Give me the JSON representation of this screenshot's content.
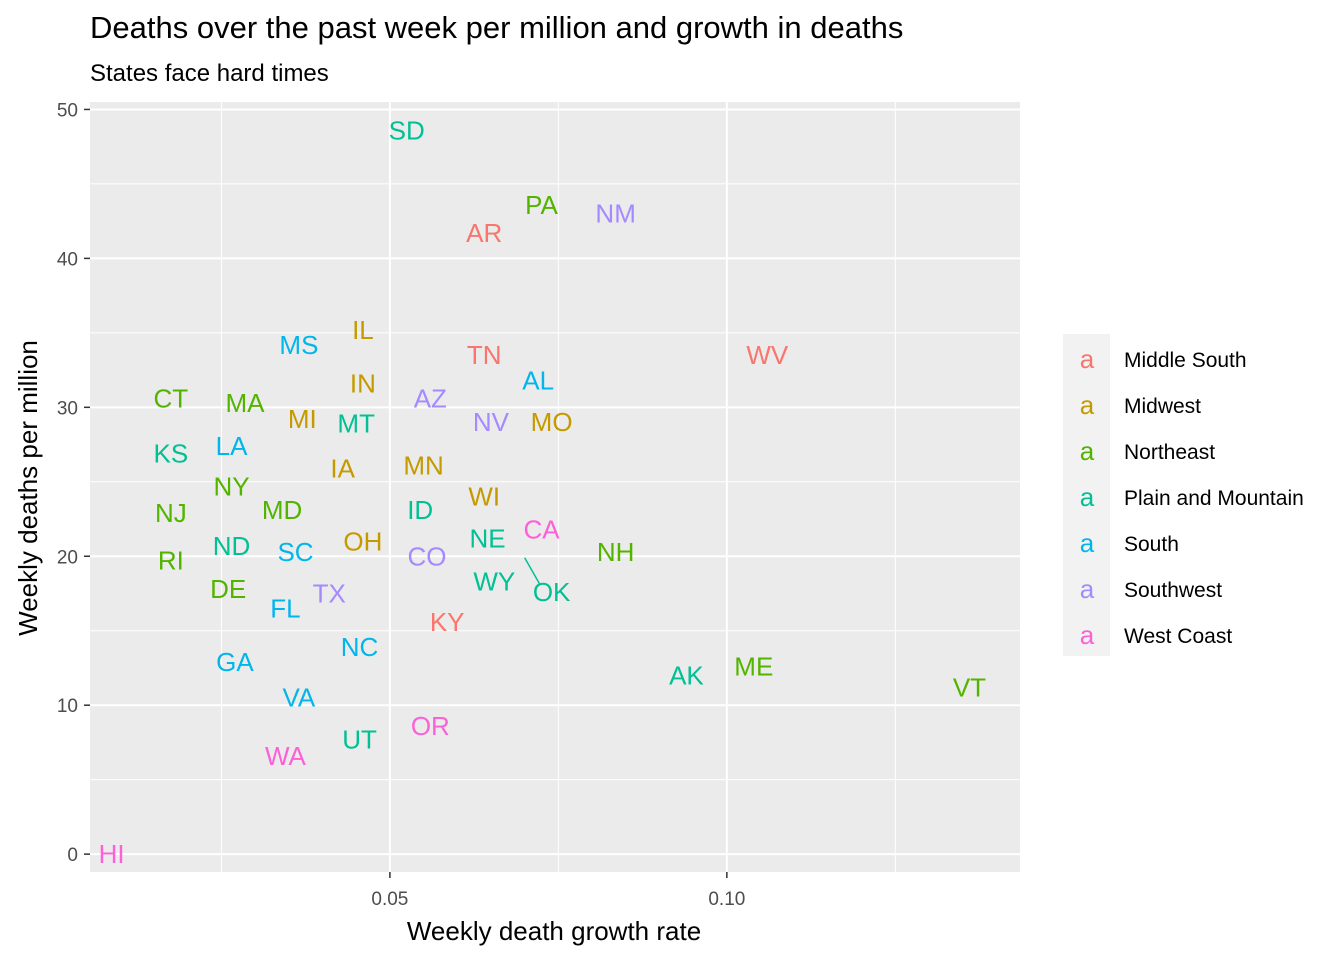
{
  "chart_data": {
    "type": "scatter",
    "title": "Deaths over the past week per million and growth in deaths",
    "subtitle": "States face hard times",
    "xlabel": "Weekly death growth rate",
    "ylabel": "Weekly deaths per million",
    "xlim": [
      0.0055,
      0.1435
    ],
    "ylim": [
      -1.2,
      50.5
    ],
    "x_ticks": [
      0.05,
      0.1
    ],
    "x_tick_labels": [
      "0.05",
      "0.10"
    ],
    "x_minor_ticks": [
      0.025,
      0.075,
      0.125
    ],
    "y_ticks": [
      0,
      10,
      20,
      30,
      40,
      50
    ],
    "y_tick_labels": [
      "0",
      "10",
      "20",
      "30",
      "40",
      "50"
    ],
    "y_minor_ticks": [
      5,
      15,
      25,
      35,
      45
    ],
    "grid": true,
    "panel_background": "#EBEBEB",
    "legend": {
      "placement": "right",
      "key_glyph": "a",
      "entries": [
        {
          "name": "Middle South",
          "color": "#F8766D"
        },
        {
          "name": "Midwest",
          "color": "#C49A00"
        },
        {
          "name": "Northeast",
          "color": "#53B400"
        },
        {
          "name": "Plain and Mountain",
          "color": "#00C094"
        },
        {
          "name": "South",
          "color": "#00B6EB"
        },
        {
          "name": "Southwest",
          "color": "#A58AFF"
        },
        {
          "name": "West Coast",
          "color": "#FB61D7"
        }
      ]
    },
    "points": [
      {
        "label": "SD",
        "x": 0.0525,
        "y": 48.6,
        "group": "Plain and Mountain"
      },
      {
        "label": "PA",
        "x": 0.0725,
        "y": 43.6,
        "group": "Northeast"
      },
      {
        "label": "NM",
        "x": 0.0835,
        "y": 43.0,
        "group": "Southwest"
      },
      {
        "label": "AR",
        "x": 0.064,
        "y": 41.7,
        "group": "Middle South"
      },
      {
        "label": "IL",
        "x": 0.046,
        "y": 35.2,
        "group": "Midwest"
      },
      {
        "label": "MS",
        "x": 0.0365,
        "y": 34.2,
        "group": "South"
      },
      {
        "label": "TN",
        "x": 0.064,
        "y": 33.5,
        "group": "Middle South"
      },
      {
        "label": "WV",
        "x": 0.106,
        "y": 33.5,
        "group": "Middle South"
      },
      {
        "label": "AL",
        "x": 0.072,
        "y": 31.8,
        "group": "South"
      },
      {
        "label": "IN",
        "x": 0.046,
        "y": 31.6,
        "group": "Midwest"
      },
      {
        "label": "CT",
        "x": 0.0175,
        "y": 30.6,
        "group": "Northeast"
      },
      {
        "label": "AZ",
        "x": 0.056,
        "y": 30.6,
        "group": "Southwest"
      },
      {
        "label": "MA",
        "x": 0.0285,
        "y": 30.3,
        "group": "Northeast"
      },
      {
        "label": "MI",
        "x": 0.037,
        "y": 29.2,
        "group": "Midwest"
      },
      {
        "label": "NV",
        "x": 0.065,
        "y": 29.0,
        "group": "Southwest"
      },
      {
        "label": "MO",
        "x": 0.074,
        "y": 29.0,
        "group": "Midwest"
      },
      {
        "label": "MT",
        "x": 0.045,
        "y": 28.9,
        "group": "Plain and Mountain"
      },
      {
        "label": "LA",
        "x": 0.0265,
        "y": 27.4,
        "group": "South"
      },
      {
        "label": "KS",
        "x": 0.0175,
        "y": 26.9,
        "group": "Plain and Mountain"
      },
      {
        "label": "MN",
        "x": 0.055,
        "y": 26.1,
        "group": "Midwest"
      },
      {
        "label": "IA",
        "x": 0.043,
        "y": 25.9,
        "group": "Midwest"
      },
      {
        "label": "NY",
        "x": 0.0265,
        "y": 24.7,
        "group": "Northeast"
      },
      {
        "label": "WI",
        "x": 0.064,
        "y": 24.0,
        "group": "Midwest"
      },
      {
        "label": "MD",
        "x": 0.034,
        "y": 23.1,
        "group": "Northeast"
      },
      {
        "label": "ID",
        "x": 0.0545,
        "y": 23.1,
        "group": "Plain and Mountain"
      },
      {
        "label": "NJ",
        "x": 0.0175,
        "y": 22.9,
        "group": "Northeast"
      },
      {
        "label": "CA",
        "x": 0.0725,
        "y": 21.8,
        "group": "West Coast"
      },
      {
        "label": "NE",
        "x": 0.0645,
        "y": 21.2,
        "group": "Plain and Mountain"
      },
      {
        "label": "OH",
        "x": 0.046,
        "y": 21.0,
        "group": "Midwest"
      },
      {
        "label": "ND",
        "x": 0.0265,
        "y": 20.7,
        "group": "Plain and Mountain"
      },
      {
        "label": "SC",
        "x": 0.036,
        "y": 20.3,
        "group": "South"
      },
      {
        "label": "NH",
        "x": 0.0835,
        "y": 20.3,
        "group": "Northeast"
      },
      {
        "label": "CO",
        "x": 0.0555,
        "y": 20.0,
        "group": "Southwest"
      },
      {
        "label": "RI",
        "x": 0.0175,
        "y": 19.7,
        "group": "Northeast"
      },
      {
        "label": "OK",
        "x": 0.07,
        "y": 19.9,
        "group": "Plain and Mountain",
        "label_x": 0.074,
        "label_y": 17.6
      },
      {
        "label": "WY",
        "x": 0.0655,
        "y": 18.3,
        "group": "Plain and Mountain"
      },
      {
        "label": "DE",
        "x": 0.026,
        "y": 17.8,
        "group": "Northeast"
      },
      {
        "label": "TX",
        "x": 0.041,
        "y": 17.5,
        "group": "Southwest"
      },
      {
        "label": "FL",
        "x": 0.0345,
        "y": 16.5,
        "group": "South"
      },
      {
        "label": "KY",
        "x": 0.0585,
        "y": 15.6,
        "group": "Middle South"
      },
      {
        "label": "NC",
        "x": 0.0455,
        "y": 13.9,
        "group": "South"
      },
      {
        "label": "GA",
        "x": 0.027,
        "y": 12.9,
        "group": "South"
      },
      {
        "label": "ME",
        "x": 0.104,
        "y": 12.6,
        "group": "Northeast"
      },
      {
        "label": "AK",
        "x": 0.094,
        "y": 12.0,
        "group": "Plain and Mountain"
      },
      {
        "label": "VT",
        "x": 0.136,
        "y": 11.2,
        "group": "Northeast"
      },
      {
        "label": "VA",
        "x": 0.0365,
        "y": 10.5,
        "group": "South"
      },
      {
        "label": "OR",
        "x": 0.056,
        "y": 8.6,
        "group": "West Coast"
      },
      {
        "label": "UT",
        "x": 0.0455,
        "y": 7.7,
        "group": "Plain and Mountain"
      },
      {
        "label": "WA",
        "x": 0.0345,
        "y": 6.6,
        "group": "West Coast"
      },
      {
        "label": "HI",
        "x": 0.0087,
        "y": 0.0,
        "group": "West Coast"
      }
    ]
  }
}
